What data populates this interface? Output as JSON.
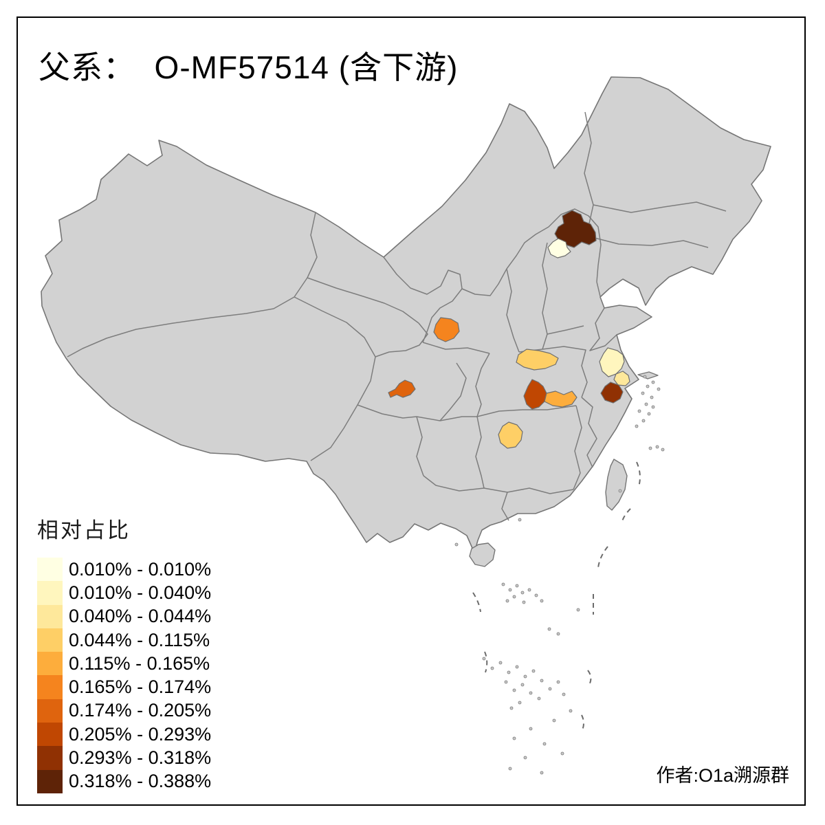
{
  "title": "父系：  O-MF57514 (含下游)",
  "author": "作者:O1a溯源群",
  "legend": {
    "title": "相对占比",
    "classes": [
      {
        "label": "0.010% - 0.010%",
        "color": "#FFFFE3"
      },
      {
        "label": "0.010% - 0.040%",
        "color": "#FFF6BE"
      },
      {
        "label": "0.040% - 0.044%",
        "color": "#FEE89B"
      },
      {
        "label": "0.044% - 0.115%",
        "color": "#FECF66"
      },
      {
        "label": "0.115% - 0.165%",
        "color": "#FDAD3C"
      },
      {
        "label": "0.165% - 0.174%",
        "color": "#F5841E"
      },
      {
        "label": "0.174% - 0.205%",
        "color": "#DF640E"
      },
      {
        "label": "0.205% - 0.293%",
        "color": "#C04702"
      },
      {
        "label": "0.293% - 0.318%",
        "color": "#903103"
      },
      {
        "label": "0.318% - 0.388%",
        "color": "#5E2307"
      }
    ]
  },
  "map": {
    "land_color": "#D2D2D2",
    "border_color": "#7D7D7D",
    "background": "#FFFFFF",
    "regions": [
      {
        "id": "region-northeast-hebei",
        "class_index": 9
      },
      {
        "id": "region-beijing-area",
        "class_index": 0
      },
      {
        "id": "region-south-shaanxi",
        "class_index": 5
      },
      {
        "id": "region-northwest-hubei",
        "class_index": 3
      },
      {
        "id": "region-east-jiangsu",
        "class_index": 1
      },
      {
        "id": "region-southeast-jiangsu",
        "class_index": 2
      },
      {
        "id": "region-central-sichuan",
        "class_index": 6
      },
      {
        "id": "region-north-hunan-west",
        "class_index": 7
      },
      {
        "id": "region-north-hunan-east",
        "class_index": 4
      },
      {
        "id": "region-north-zhejiang",
        "class_index": 8
      },
      {
        "id": "region-central-hunan",
        "class_index": 3
      }
    ]
  }
}
